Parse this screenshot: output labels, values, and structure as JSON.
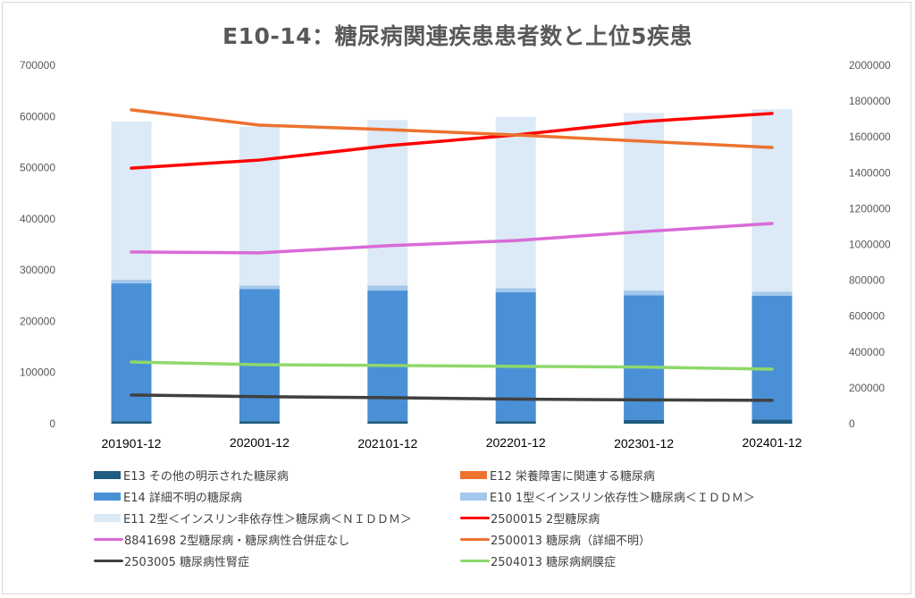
{
  "chart_data": {
    "type": "bar",
    "subtype": "stacked-bar-with-secondary-axis-lines",
    "title": "E10-14：糖尿病関連疾患患者数と上位5疾患",
    "categories": [
      "201901-12",
      "202001-12",
      "202101-12",
      "202201-12",
      "202301-12",
      "202401-12"
    ],
    "primary_axis": {
      "ylim": [
        0,
        700000
      ],
      "ticks": [
        "0",
        "100000",
        "200000",
        "300000",
        "400000",
        "500000",
        "600000",
        "700000"
      ]
    },
    "secondary_axis": {
      "ylim": [
        0,
        2000000
      ],
      "ticks": [
        "0",
        "200000",
        "400000",
        "600000",
        "800000",
        "1000000",
        "1200000",
        "1400000",
        "1600000",
        "1800000",
        "2000000"
      ]
    },
    "grid": false,
    "legend_position": "bottom",
    "bar_series": [
      {
        "name": "E13 その他の明示された糖尿病",
        "color": "#1f5c80",
        "values": [
          5000,
          5000,
          5000,
          5000,
          7000,
          8000
        ]
      },
      {
        "name": "E14 詳細不明の糖尿病",
        "color": "#4a90d6",
        "values": [
          269000,
          258000,
          255000,
          252000,
          244000,
          242000
        ]
      },
      {
        "name": "E12 栄養障害に関連する糖尿病",
        "color": "#ed7230",
        "values": [
          0,
          0,
          0,
          0,
          0,
          0
        ]
      },
      {
        "name": "E10 1型＜インスリン依存性＞糖尿病＜ＩＤＤＭ＞",
        "color": "#a4c8ec",
        "values": [
          7000,
          7000,
          10000,
          8000,
          9000,
          8000
        ]
      },
      {
        "name": "E11 2型＜インスリン非依存性＞糖尿病＜ＮＩＤＤＭ＞",
        "color": "#dce9f6",
        "values": [
          309000,
          310000,
          323000,
          334000,
          347000,
          356000
        ]
      }
    ],
    "line_series": [
      {
        "name": "2500015 2型糖尿病",
        "color": "#ff0000",
        "axis": "secondary",
        "values": [
          1426000,
          1471000,
          1551000,
          1611000,
          1686000,
          1731000
        ]
      },
      {
        "name": "2500013 糖尿病（詳細不明）",
        "color": "#ed7230",
        "axis": "secondary",
        "values": [
          1751000,
          1666000,
          1641000,
          1611000,
          1576000,
          1541000
        ]
      },
      {
        "name": "8841698 2型糖尿病・糖尿病性合併症なし",
        "color": "#d96ad6",
        "axis": "secondary",
        "values": [
          958000,
          953000,
          993000,
          1022000,
          1072000,
          1117000
        ]
      },
      {
        "name": "2504013 糖尿病網膜症",
        "color": "#8ed86c",
        "axis": "secondary",
        "values": [
          344000,
          329000,
          325000,
          320000,
          316000,
          304000
        ]
      },
      {
        "name": "2503005 糖尿病性腎症",
        "color": "#404040",
        "axis": "secondary",
        "values": [
          160000,
          151000,
          145000,
          137000,
          133000,
          130000
        ]
      }
    ],
    "legend": [
      {
        "label": "E13 その他の明示された糖尿病",
        "kind": "bar",
        "color": "#1f5c80"
      },
      {
        "label": "E12 栄養障害に関連する糖尿病",
        "kind": "bar",
        "color": "#ed7230"
      },
      {
        "label": "E14 詳細不明の糖尿病",
        "kind": "bar",
        "color": "#4a90d6"
      },
      {
        "label": "E10 1型＜インスリン依存性＞糖尿病＜ＩＤＤＭ＞",
        "kind": "bar",
        "color": "#a4c8ec"
      },
      {
        "label": "E11 2型＜インスリン非依存性＞糖尿病＜ＮＩＤＤＭ＞",
        "kind": "bar",
        "color": "#dce9f6"
      },
      {
        "label": "2500015 2型糖尿病",
        "kind": "line",
        "color": "#ff0000"
      },
      {
        "label": "8841698 2型糖尿病・糖尿病性合併症なし",
        "kind": "line",
        "color": "#d96ad6"
      },
      {
        "label": "2500013 糖尿病（詳細不明）",
        "kind": "line",
        "color": "#ed7230"
      },
      {
        "label": "2503005 糖尿病性腎症",
        "kind": "line",
        "color": "#404040"
      },
      {
        "label": "2504013 糖尿病網膜症",
        "kind": "line",
        "color": "#8ed86c"
      }
    ]
  }
}
